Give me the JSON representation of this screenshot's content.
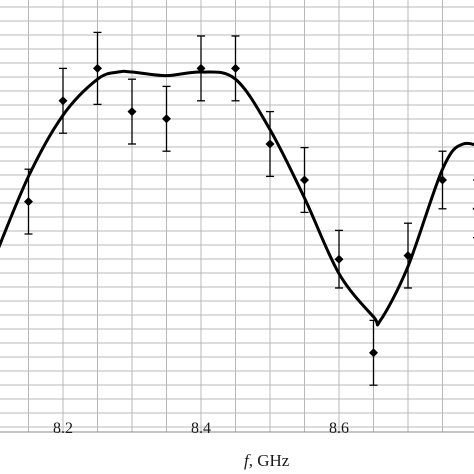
{
  "chart_data": {
    "type": "scatter",
    "title": "",
    "xlabel_var": "f",
    "xlabel_unit": ", GHz",
    "ylabel": "",
    "xlim": [
      8.1,
      8.83
    ],
    "x_ticks": [
      8.2,
      8.4,
      8.6
    ],
    "x_tick_labels": [
      "8.2",
      "8.4",
      "8.6"
    ],
    "grid": true,
    "series": [
      {
        "type": "scatter-errorbar",
        "marker": "diamond",
        "x": [
          8.15,
          8.2,
          8.25,
          8.3,
          8.35,
          8.4,
          8.45,
          8.5,
          8.55,
          8.6,
          8.65,
          8.7,
          8.75,
          8.8
        ],
        "y": [
          0.62,
          0.76,
          0.805,
          0.745,
          0.735,
          0.805,
          0.805,
          0.7,
          0.65,
          0.54,
          0.41,
          0.545,
          0.65,
          0.61
        ],
        "err": [
          0.045,
          0.045,
          0.05,
          0.045,
          0.045,
          0.045,
          0.045,
          0.045,
          0.045,
          0.04,
          0.045,
          0.045,
          0.04,
          0.04
        ]
      },
      {
        "type": "line",
        "style": "smooth",
        "x": [
          8.1,
          8.15,
          8.2,
          8.25,
          8.28,
          8.3,
          8.35,
          8.4,
          8.45,
          8.5,
          8.55,
          8.6,
          8.65,
          8.66,
          8.7,
          8.75,
          8.78,
          8.82
        ],
        "y": [
          0.54,
          0.655,
          0.74,
          0.79,
          0.8,
          0.8,
          0.795,
          0.8,
          0.79,
          0.72,
          0.625,
          0.52,
          0.46,
          0.455,
          0.53,
          0.665,
          0.7,
          0.69
        ]
      }
    ]
  }
}
